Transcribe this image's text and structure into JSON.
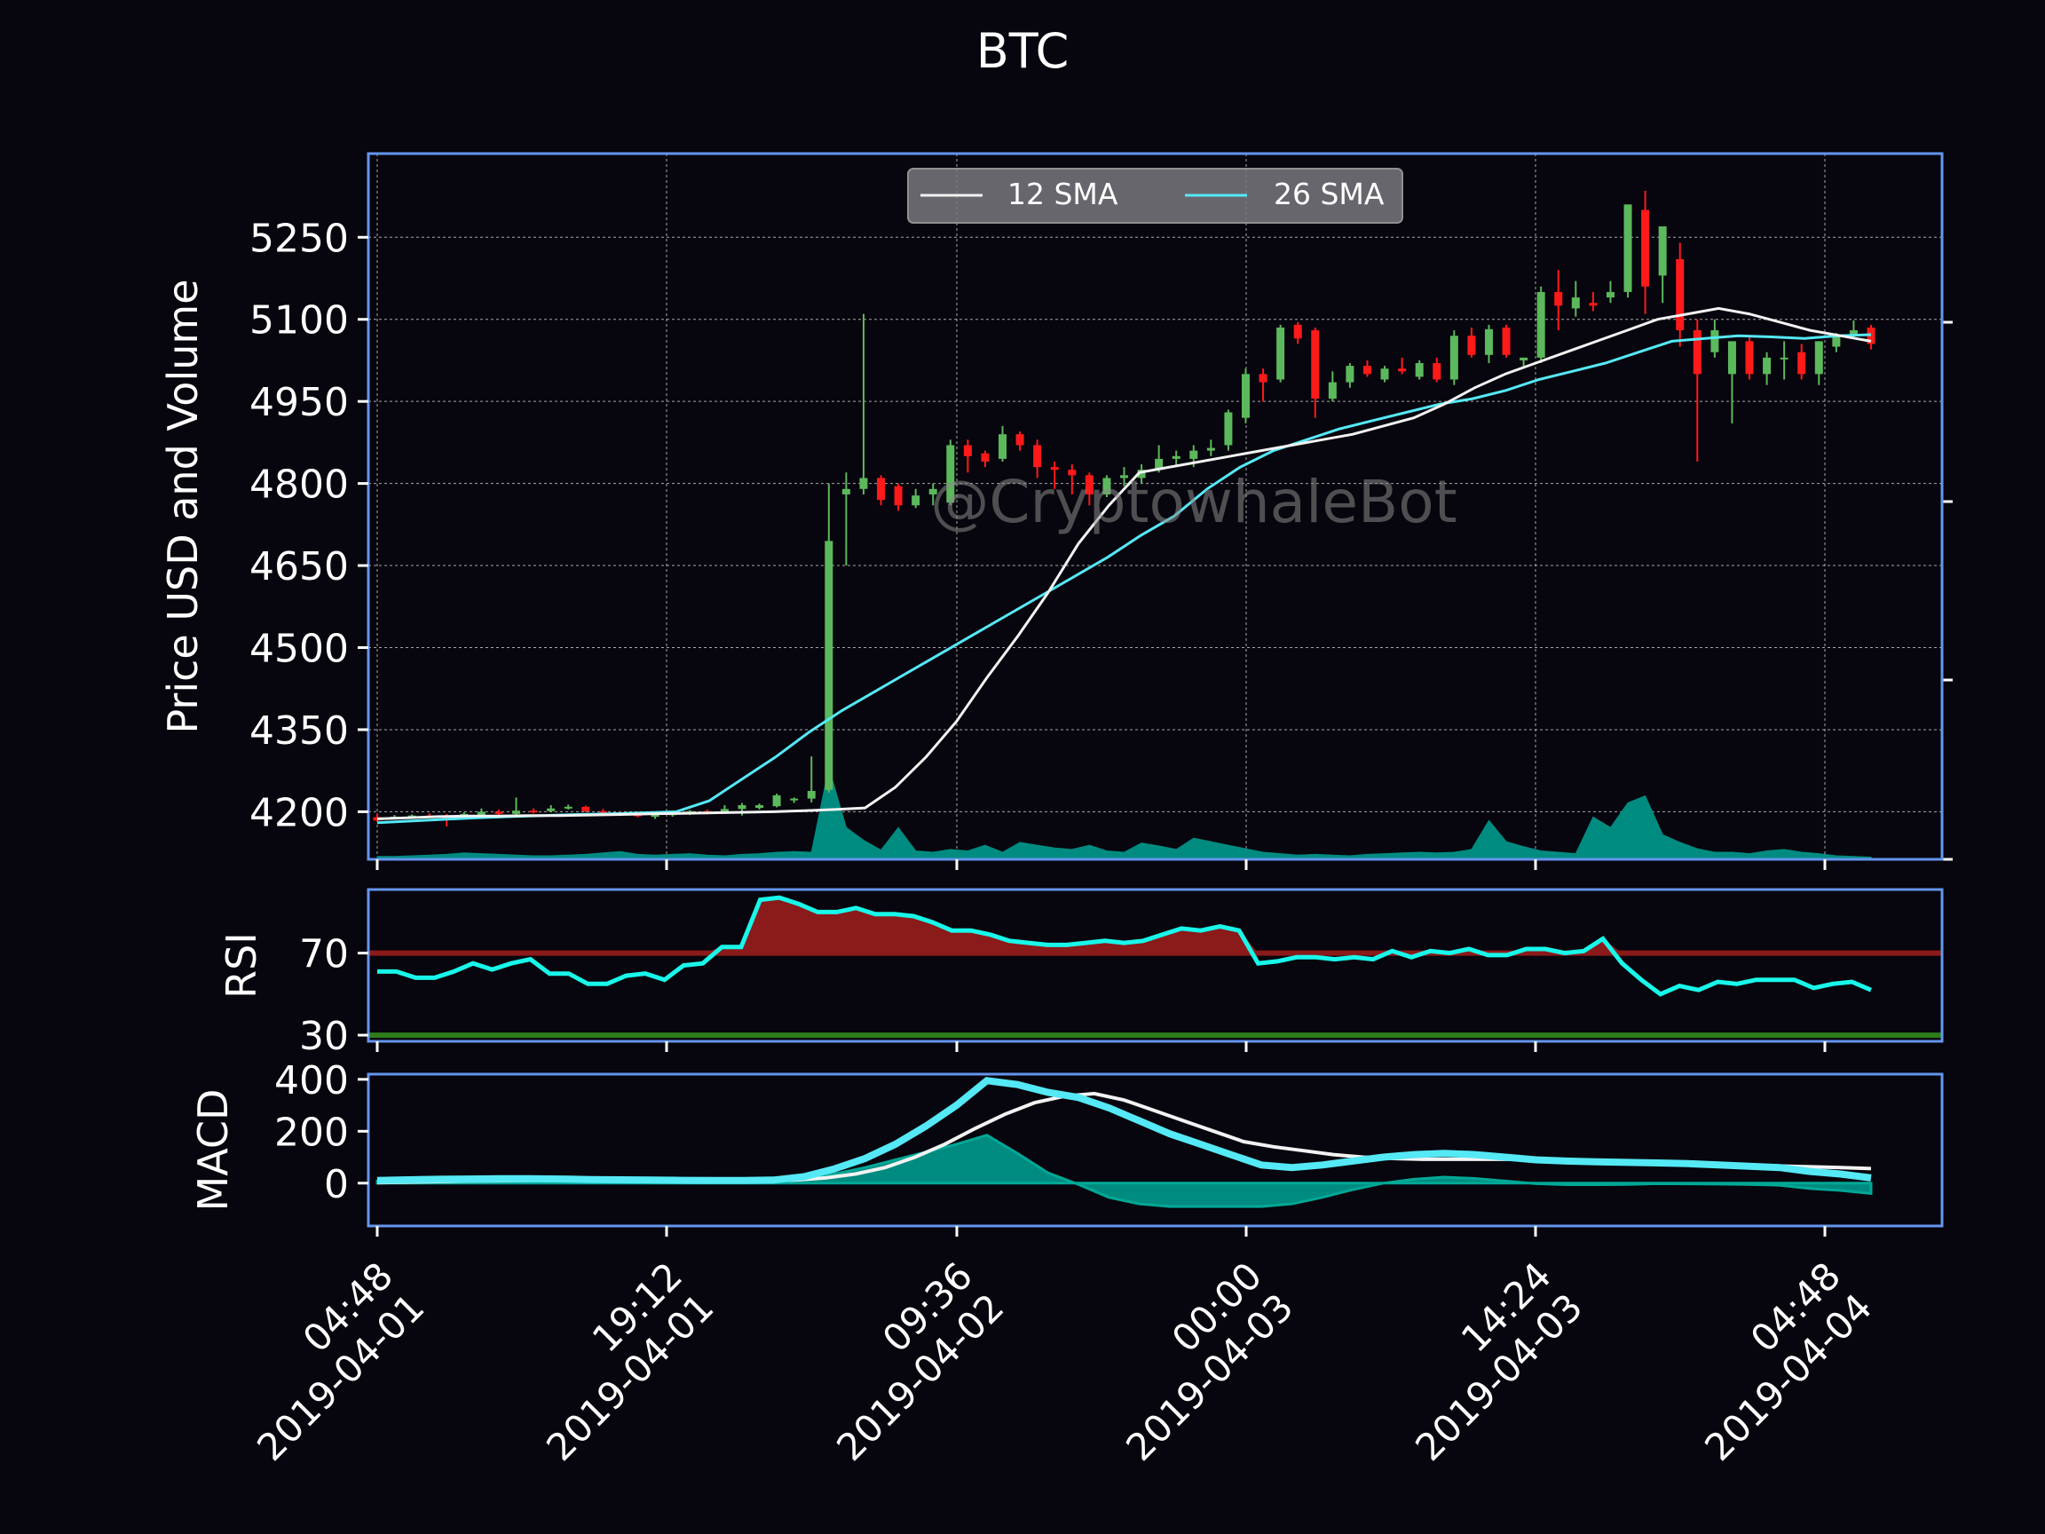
{
  "chart_data": {
    "type": "candlestick",
    "title": "BTC",
    "watermark": "@CryptowhaleBot",
    "colors": {
      "background": "#07050d",
      "frame": "#6495ed",
      "up": "#5cb85c",
      "down": "#ff1a1a",
      "sma12": "#f2f2f2",
      "sma26": "#55e8f5",
      "volume": "#008b80",
      "rsi_line": "#18f7ea",
      "rsi_overbought_fill": "#8b1a1a",
      "rsi_overbought_line": "#8b1a1a",
      "rsi_oversold_line": "#2e7d1a",
      "macd_line": "#55e8f5",
      "signal_line": "#f2f2f2",
      "histogram": "#008b80"
    },
    "price_panel": {
      "ylabel": "Price USD and Volume",
      "yticks": [
        4200,
        4350,
        4500,
        4650,
        4800,
        4950,
        5100,
        5250
      ],
      "ylim": [
        4113,
        5403
      ],
      "legend": {
        "position": "top-center",
        "entries": [
          "12 SMA",
          "26 SMA"
        ]
      },
      "candles": [
        [
          4190,
          4197,
          4182,
          4184
        ],
        [
          4190,
          4194,
          4187,
          4191
        ],
        [
          4191,
          4195,
          4189,
          4193
        ],
        [
          4193,
          4197,
          4191,
          4192
        ],
        [
          4192,
          4196,
          4173,
          4190
        ],
        [
          4190,
          4199,
          4188,
          4196
        ],
        [
          4194,
          4206,
          4190,
          4200
        ],
        [
          4200,
          4204,
          4188,
          4196
        ],
        [
          4196,
          4226,
          4194,
          4202
        ],
        [
          4202,
          4206,
          4197,
          4201
        ],
        [
          4201,
          4212,
          4199,
          4206
        ],
        [
          4206,
          4213,
          4204,
          4209
        ],
        [
          4209,
          4211,
          4199,
          4201
        ],
        [
          4201,
          4205,
          4197,
          4199
        ],
        [
          4199,
          4201,
          4192,
          4195
        ],
        [
          4195,
          4197,
          4190,
          4192
        ],
        [
          4192,
          4196,
          4187,
          4194
        ],
        [
          4194,
          4199,
          4191,
          4197
        ],
        [
          4197,
          4203,
          4194,
          4201
        ],
        [
          4201,
          4204,
          4195,
          4198
        ],
        [
          4198,
          4212,
          4196,
          4205
        ],
        [
          4205,
          4216,
          4193,
          4212
        ],
        [
          4207,
          4215,
          4204,
          4212
        ],
        [
          4210,
          4233,
          4208,
          4230
        ],
        [
          4222,
          4226,
          4216,
          4224
        ],
        [
          4224,
          4301,
          4217,
          4238
        ],
        [
          4240,
          4800,
          4235,
          4695
        ],
        [
          4780,
          4820,
          4650,
          4790
        ],
        [
          4790,
          5110,
          4780,
          4810
        ],
        [
          4810,
          4815,
          4760,
          4770
        ],
        [
          4795,
          4800,
          4750,
          4760
        ],
        [
          4760,
          4790,
          4755,
          4778
        ],
        [
          4780,
          4800,
          4760,
          4790
        ],
        [
          4765,
          4880,
          4760,
          4870
        ],
        [
          4870,
          4880,
          4820,
          4850
        ],
        [
          4855,
          4860,
          4830,
          4840
        ],
        [
          4845,
          4905,
          4840,
          4890
        ],
        [
          4890,
          4895,
          4860,
          4870
        ],
        [
          4870,
          4880,
          4810,
          4830
        ],
        [
          4830,
          4840,
          4790,
          4825
        ],
        [
          4825,
          4835,
          4780,
          4815
        ],
        [
          4815,
          4820,
          4760,
          4780
        ],
        [
          4780,
          4815,
          4775,
          4810
        ],
        [
          4810,
          4830,
          4795,
          4815
        ],
        [
          4810,
          4835,
          4800,
          4825
        ],
        [
          4825,
          4870,
          4820,
          4845
        ],
        [
          4845,
          4860,
          4830,
          4850
        ],
        [
          4845,
          4870,
          4830,
          4860
        ],
        [
          4860,
          4880,
          4850,
          4865
        ],
        [
          4870,
          4935,
          4860,
          4930
        ],
        [
          4920,
          5010,
          4910,
          5000
        ],
        [
          5000,
          5010,
          4950,
          4985
        ],
        [
          4990,
          5090,
          4985,
          5085
        ],
        [
          5090,
          5095,
          5055,
          5065
        ],
        [
          5080,
          5085,
          4920,
          4955
        ],
        [
          4955,
          5005,
          4950,
          4985
        ],
        [
          4985,
          5020,
          4975,
          5015
        ],
        [
          5015,
          5025,
          4995,
          5000
        ],
        [
          4990,
          5015,
          4985,
          5010
        ],
        [
          5010,
          5030,
          5000,
          5005
        ],
        [
          4995,
          5025,
          4990,
          5020
        ],
        [
          5020,
          5030,
          4985,
          4990
        ],
        [
          4990,
          5080,
          4980,
          5070
        ],
        [
          5070,
          5085,
          5030,
          5035
        ],
        [
          5035,
          5090,
          5020,
          5082
        ],
        [
          5085,
          5090,
          5030,
          5035
        ],
        [
          5025,
          5030,
          5010,
          5030
        ],
        [
          5030,
          5160,
          5020,
          5150
        ],
        [
          5150,
          5190,
          5080,
          5125
        ],
        [
          5120,
          5170,
          5105,
          5140
        ],
        [
          5130,
          5150,
          5115,
          5125
        ],
        [
          5140,
          5170,
          5130,
          5150
        ],
        [
          5150,
          5310,
          5140,
          5310
        ],
        [
          5300,
          5335,
          5110,
          5160
        ],
        [
          5180,
          5270,
          5130,
          5270
        ],
        [
          5210,
          5240,
          5050,
          5080
        ],
        [
          5080,
          5100,
          4840,
          5000
        ],
        [
          5040,
          5100,
          5030,
          5080
        ],
        [
          5000,
          5050,
          4910,
          5060
        ],
        [
          5060,
          5070,
          4990,
          5000
        ],
        [
          5000,
          5040,
          4980,
          5030
        ],
        [
          5030,
          5060,
          4990,
          5030
        ],
        [
          5040,
          5055,
          4990,
          5000
        ],
        [
          5000,
          5060,
          4980,
          5060
        ],
        [
          5050,
          5075,
          5040,
          5070
        ],
        [
          5070,
          5098,
          5065,
          5080
        ],
        [
          5085,
          5090,
          5045,
          5055
        ]
      ],
      "sma12": [
        4187,
        4189,
        4191,
        4192,
        4192,
        4193,
        4193,
        4194,
        4195,
        4196,
        4197,
        4198,
        4199,
        4200,
        4202,
        4204,
        4207,
        4245,
        4300,
        4365,
        4445,
        4520,
        4600,
        4690,
        4760,
        4820,
        4830,
        4840,
        4850,
        4860,
        4870,
        4880,
        4890,
        4905,
        4920,
        4945,
        4975,
        5000,
        5020,
        5040,
        5060,
        5080,
        5100,
        5110,
        5120,
        5110,
        5095,
        5080,
        5070,
        5060
      ],
      "sma26": [
        4180,
        4183,
        4186,
        4189,
        4191,
        4193,
        4195,
        4196,
        4198,
        4200,
        4220,
        4260,
        4300,
        4345,
        4385,
        4420,
        4455,
        4490,
        4525,
        4560,
        4595,
        4630,
        4665,
        4705,
        4740,
        4790,
        4830,
        4860,
        4880,
        4900,
        4915,
        4930,
        4945,
        4955,
        4970,
        4990,
        5005,
        5020,
        5040,
        5060,
        5065,
        5070,
        5068,
        5065,
        5070,
        5072
      ],
      "volume": [
        4,
        4,
        5,
        6,
        7,
        9,
        8,
        7,
        6,
        5,
        5,
        6,
        7,
        9,
        11,
        7,
        6,
        7,
        8,
        6,
        5,
        7,
        8,
        10,
        11,
        10,
        130,
        45,
        27,
        13,
        45,
        12,
        10,
        14,
        12,
        20,
        10,
        24,
        20,
        16,
        14,
        20,
        12,
        10,
        23,
        19,
        14,
        30,
        25,
        20,
        15,
        10,
        8,
        6,
        7,
        6,
        5,
        7,
        8,
        9,
        10,
        9,
        10,
        14,
        55,
        25,
        18,
        12,
        10,
        8,
        60,
        45,
        80,
        90,
        35,
        24,
        15,
        10,
        10,
        8,
        12,
        14,
        10,
        8,
        5,
        4,
        3
      ],
      "volume_max": 1000
    },
    "rsi_panel": {
      "ylabel": "RSI",
      "yticks": [
        30,
        70
      ],
      "ylim": [
        27,
        101
      ],
      "overbought": 70,
      "oversold": 30,
      "values": [
        61,
        61,
        58,
        58,
        61,
        65,
        62,
        65,
        67,
        60,
        60,
        55,
        55,
        59,
        60,
        57,
        64,
        65,
        73,
        73,
        96,
        97,
        94,
        90,
        90,
        92,
        89,
        89,
        88,
        85,
        81,
        81,
        79,
        76,
        75,
        74,
        74,
        75,
        76,
        75,
        76,
        79,
        82,
        81,
        83,
        81,
        65,
        66,
        68,
        68,
        67,
        68,
        67,
        71,
        68,
        71,
        70,
        72,
        69,
        69,
        72,
        72,
        70,
        71,
        77,
        65,
        57,
        50,
        54,
        52,
        56,
        55,
        57,
        57,
        57,
        53,
        55,
        56,
        52
      ]
    },
    "macd_panel": {
      "ylabel": "MACD",
      "yticks": [
        0,
        200,
        400
      ],
      "ylim": [
        -165,
        420
      ],
      "macd": [
        10,
        13,
        15,
        16,
        17,
        17,
        16,
        14,
        13,
        12,
        11,
        10,
        10,
        12,
        25,
        55,
        95,
        150,
        220,
        300,
        395,
        380,
        350,
        330,
        290,
        240,
        190,
        150,
        110,
        70,
        60,
        70,
        85,
        100,
        110,
        115,
        110,
        100,
        90,
        85,
        82,
        80,
        78,
        75,
        70,
        65,
        60,
        45,
        35,
        20
      ],
      "signal": [
        2,
        4,
        6,
        8,
        9,
        10,
        11,
        11,
        11,
        10,
        10,
        10,
        9,
        9,
        12,
        20,
        35,
        60,
        100,
        150,
        210,
        265,
        310,
        335,
        345,
        320,
        280,
        240,
        200,
        160,
        140,
        125,
        110,
        100,
        95,
        92,
        92,
        92,
        92,
        91,
        88,
        85,
        80,
        78,
        74,
        70,
        68,
        66,
        63,
        60,
        56
      ],
      "histogram": [
        8,
        9,
        9,
        8,
        8,
        7,
        5,
        3,
        2,
        2,
        1,
        0,
        1,
        3,
        13,
        35,
        60,
        90,
        120,
        150,
        185,
        115,
        40,
        -5,
        -55,
        -80,
        -90,
        -90,
        -90,
        -90,
        -80,
        -55,
        -25,
        0,
        15,
        23,
        18,
        8,
        -2,
        -6,
        -6,
        -5,
        -2,
        -3,
        -4,
        -5,
        -8,
        -21,
        -28,
        -40
      ]
    },
    "x_axis": {
      "tick_labels": [
        [
          "04:48",
          "2019-04-01"
        ],
        [
          "19:12",
          "2019-04-01"
        ],
        [
          "09:36",
          "2019-04-02"
        ],
        [
          "00:00",
          "2019-04-03"
        ],
        [
          "14:24",
          "2019-04-03"
        ],
        [
          "04:48",
          "2019-04-04"
        ]
      ]
    }
  }
}
